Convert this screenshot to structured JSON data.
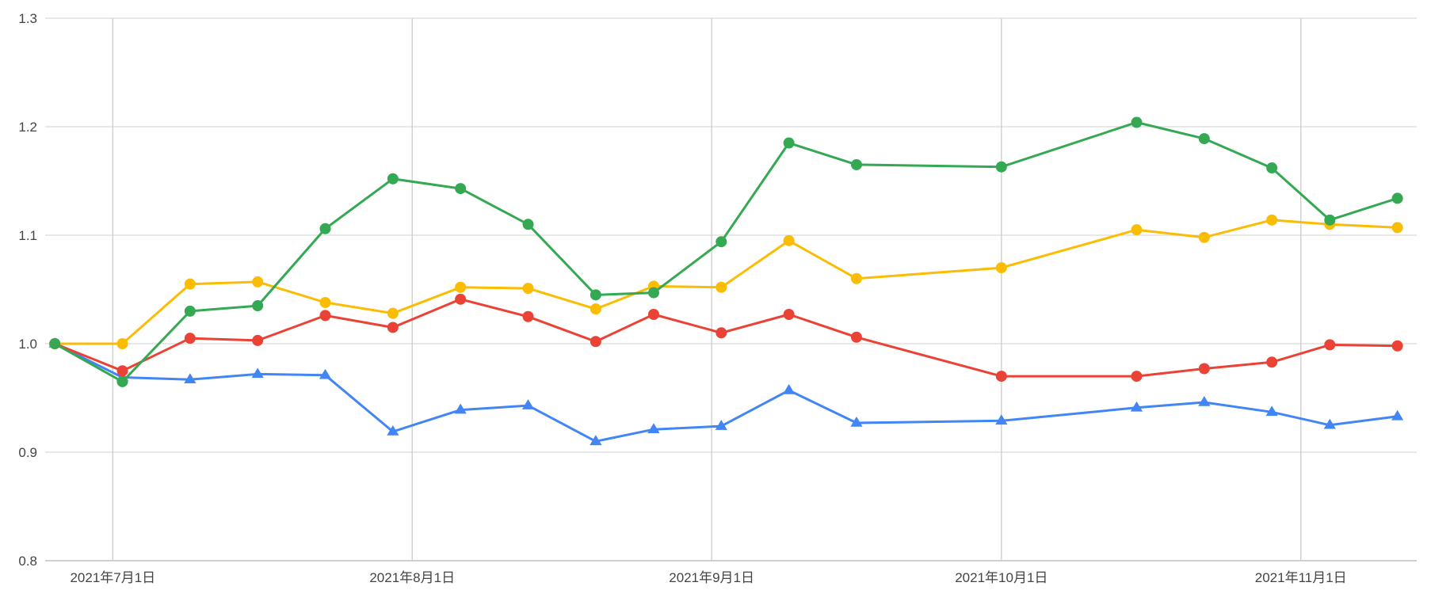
{
  "chart_data": {
    "type": "line",
    "title": "",
    "xlabel": "",
    "ylabel": "",
    "x_axis_type": "date",
    "xlim": [
      "2021-06-24",
      "2021-11-13"
    ],
    "ylim": [
      0.8,
      1.3
    ],
    "y_ticks": [
      0.8,
      0.9,
      1.0,
      1.1,
      1.2,
      1.3
    ],
    "x_ticks": [
      {
        "date": "2021-07-01",
        "label": "2021年7月1日"
      },
      {
        "date": "2021-08-01",
        "label": "2021年8月1日"
      },
      {
        "date": "2021-09-01",
        "label": "2021年9月1日"
      },
      {
        "date": "2021-10-01",
        "label": "2021年10月1日"
      },
      {
        "date": "2021-11-01",
        "label": "2021年11月1日"
      }
    ],
    "grid": true,
    "legend": "none",
    "x": [
      "2021-06-25",
      "2021-07-02",
      "2021-07-09",
      "2021-07-16",
      "2021-07-23",
      "2021-07-30",
      "2021-08-06",
      "2021-08-13",
      "2021-08-20",
      "2021-08-26",
      "2021-09-02",
      "2021-09-09",
      "2021-09-16",
      "2021-10-01",
      "2021-10-15",
      "2021-10-22",
      "2021-10-29",
      "2021-11-04",
      "2021-11-11"
    ],
    "series": [
      {
        "color": "#4285f4",
        "marker": "triangle",
        "values": [
          1.0,
          0.969,
          0.967,
          0.972,
          0.971,
          0.919,
          0.939,
          0.943,
          0.91,
          0.921,
          0.924,
          0.957,
          0.927,
          0.929,
          0.941,
          0.946,
          0.937,
          0.925,
          0.933
        ]
      },
      {
        "color": "#ea4335",
        "marker": "circle",
        "values": [
          1.0,
          0.975,
          1.005,
          1.003,
          1.026,
          1.015,
          1.041,
          1.025,
          1.002,
          1.027,
          1.01,
          1.027,
          1.006,
          0.97,
          0.97,
          0.977,
          0.983,
          0.999,
          0.998
        ]
      },
      {
        "color": "#fbbc04",
        "marker": "circle",
        "values": [
          1.0,
          1.0,
          1.055,
          1.057,
          1.038,
          1.028,
          1.052,
          1.051,
          1.032,
          1.053,
          1.052,
          1.095,
          1.06,
          1.07,
          1.105,
          1.098,
          1.114,
          1.11,
          1.107
        ]
      },
      {
        "color": "#34a853",
        "marker": "circle",
        "values": [
          1.0,
          0.965,
          1.03,
          1.035,
          1.106,
          1.152,
          1.143,
          1.11,
          1.045,
          1.047,
          1.094,
          1.185,
          1.165,
          1.163,
          1.204,
          1.189,
          1.162,
          1.114,
          1.134
        ]
      }
    ]
  }
}
